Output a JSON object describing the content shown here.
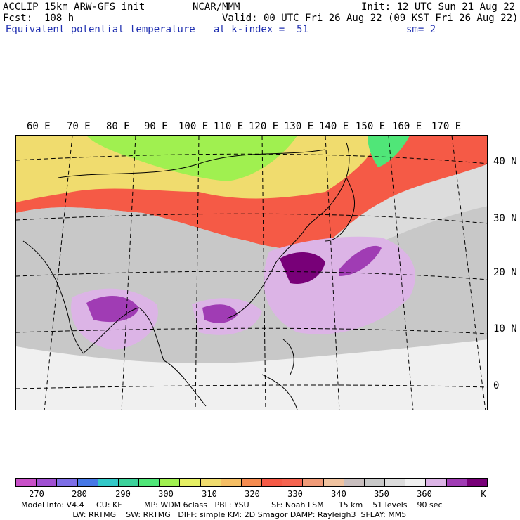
{
  "header": {
    "model": "ACCLIP 15km ARW-GFS init",
    "center": "NCAR/MMM",
    "init": "Init: 12 UTC Sun 21 Aug 22",
    "fcst": "Fcst:  108 h",
    "valid": "Valid: 00 UTC Fri 26 Aug 22 (09 KST Fri 26 Aug 22)",
    "field": "Equivalent potential temperature",
    "level": "at k-index =  51",
    "smooth": "sm= 2"
  },
  "map": {
    "lon_labels": [
      "60 E",
      "70 E",
      "80 E",
      "90 E",
      "100 E",
      "110 E",
      "120 E",
      "130 E",
      "140 E",
      "150 E",
      "160 E",
      "170 E"
    ],
    "lat_labels": [
      "40 N",
      "30 N",
      "20 N",
      "10 N",
      "0"
    ]
  },
  "colorbar": {
    "colors": [
      "#c850c8",
      "#a050d2",
      "#7d6ee6",
      "#4678e6",
      "#32c8c8",
      "#3cd29b",
      "#50e678",
      "#a0f050",
      "#e6f064",
      "#f0dc6e",
      "#f5be64",
      "#f58c50",
      "#f55a46",
      "#f56450",
      "#f09b78",
      "#f0c3a0",
      "#c8bebe",
      "#c8c8c8",
      "#dcdcdc",
      "#f0f0f0",
      "#dcb4e6",
      "#a03cb4",
      "#780078"
    ],
    "ticks": [
      "270",
      "280",
      "290",
      "300",
      "310",
      "320",
      "330",
      "340",
      "350",
      "360"
    ],
    "unit": "K"
  },
  "footer": {
    "line1": "Model Info: V4.4     CU: KF         MP: WDM 6class   PBL: YSU         SF: Noah LSM      15 km    51 levels    90 sec",
    "line2": "                     LW: RRTMG    SW: RRTMG   DIFF: simple KM: 2D Smagor DAMP: Rayleigh3  SFLAY: MM5"
  }
}
